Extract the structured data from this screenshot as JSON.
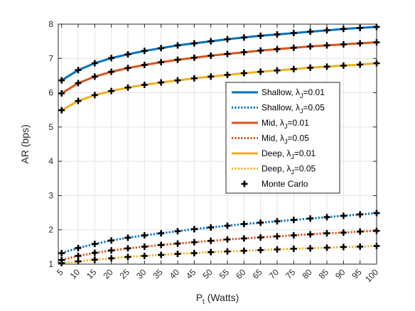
{
  "chart_data": {
    "type": "line",
    "title": "",
    "xlabel": "P_t (Watts)",
    "xlabel_main": "P",
    "xlabel_sub": "t",
    "xlabel_rest": " (Watts)",
    "ylabel": "AR (bps)",
    "xlim": [
      4,
      100
    ],
    "ylim": [
      1,
      8
    ],
    "xticks": [
      5,
      10,
      15,
      20,
      25,
      30,
      35,
      40,
      45,
      50,
      55,
      60,
      65,
      70,
      75,
      80,
      85,
      90,
      95,
      100
    ],
    "yticks": [
      1,
      2,
      3,
      4,
      5,
      6,
      7,
      8
    ],
    "grid": true,
    "legend_position": "center-right",
    "x": [
      5,
      10,
      15,
      20,
      25,
      30,
      35,
      40,
      45,
      50,
      55,
      60,
      65,
      70,
      75,
      80,
      85,
      90,
      95,
      100
    ],
    "series": [
      {
        "name": "Shallow, λ_J=0.01",
        "legend_main": "Shallow, λ",
        "legend_sub": "J",
        "legend_rest": "=0.01",
        "color": "#0072BD",
        "style": "solid",
        "values": [
          6.36,
          6.66,
          6.86,
          7.01,
          7.12,
          7.22,
          7.3,
          7.38,
          7.44,
          7.5,
          7.56,
          7.61,
          7.66,
          7.7,
          7.74,
          7.78,
          7.82,
          7.86,
          7.89,
          7.92
        ]
      },
      {
        "name": "Shallow, λ_J=0.05",
        "legend_main": "Shallow, λ",
        "legend_sub": "J",
        "legend_rest": "=0.05",
        "color": "#0072BD",
        "style": "dotted",
        "values": [
          1.32,
          1.47,
          1.59,
          1.69,
          1.77,
          1.84,
          1.9,
          1.96,
          2.02,
          2.07,
          2.12,
          2.17,
          2.21,
          2.25,
          2.29,
          2.33,
          2.37,
          2.41,
          2.45,
          2.49
        ]
      },
      {
        "name": "Mid, λ_J=0.01",
        "legend_main": "Mid, λ",
        "legend_sub": "J",
        "legend_rest": "=0.01",
        "color": "#D95319",
        "style": "solid",
        "values": [
          5.98,
          6.28,
          6.47,
          6.61,
          6.72,
          6.81,
          6.89,
          6.96,
          7.02,
          7.08,
          7.13,
          7.18,
          7.23,
          7.27,
          7.31,
          7.35,
          7.38,
          7.41,
          7.44,
          7.47
        ]
      },
      {
        "name": "Mid, λ_J=0.05",
        "legend_main": "Mid, λ",
        "legend_sub": "J",
        "legend_rest": "=0.05",
        "color": "#D95319",
        "style": "dotted",
        "values": [
          1.12,
          1.24,
          1.33,
          1.4,
          1.46,
          1.51,
          1.56,
          1.6,
          1.64,
          1.68,
          1.72,
          1.75,
          1.78,
          1.81,
          1.84,
          1.87,
          1.9,
          1.92,
          1.95,
          1.97
        ]
      },
      {
        "name": "Deep, λ_J=0.01",
        "legend_main": "Deep, λ",
        "legend_sub": "J",
        "legend_rest": "=0.01",
        "color": "#EDB120",
        "style": "solid",
        "values": [
          5.49,
          5.76,
          5.93,
          6.05,
          6.15,
          6.23,
          6.3,
          6.36,
          6.42,
          6.47,
          6.52,
          6.57,
          6.61,
          6.65,
          6.69,
          6.73,
          6.76,
          6.79,
          6.82,
          6.86
        ]
      },
      {
        "name": "Deep, λ_J=0.05",
        "legend_main": "Deep, λ",
        "legend_sub": "J",
        "legend_rest": "=0.05",
        "color": "#EDB120",
        "style": "dotted",
        "values": [
          1.03,
          1.08,
          1.13,
          1.17,
          1.21,
          1.24,
          1.27,
          1.3,
          1.32,
          1.35,
          1.37,
          1.39,
          1.41,
          1.43,
          1.45,
          1.46,
          1.48,
          1.5,
          1.51,
          1.53
        ]
      }
    ],
    "monte_carlo": {
      "name": "Monte Carlo",
      "color": "#000000",
      "marker": "plus"
    }
  }
}
